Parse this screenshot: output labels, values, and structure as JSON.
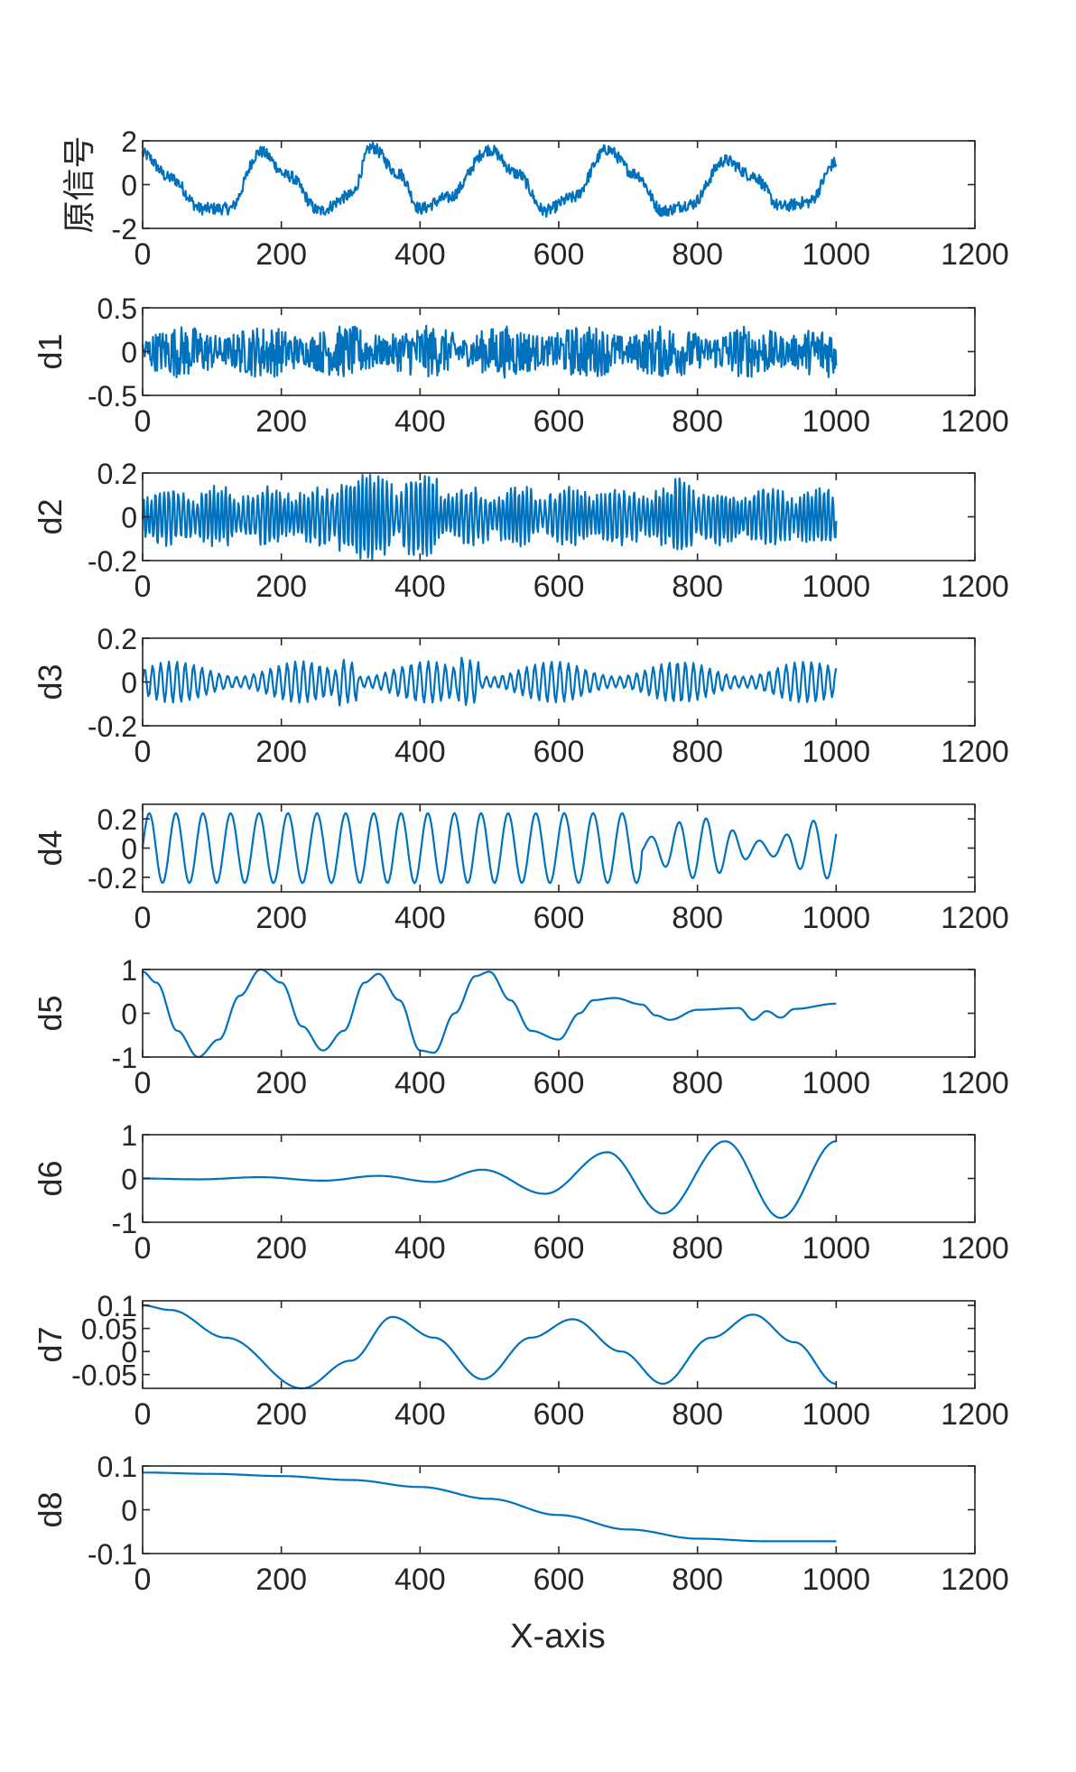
{
  "figure": {
    "xlabel": "X-axis",
    "color": "#0072BD"
  },
  "chart_data": [
    {
      "type": "line",
      "ylabel": "原信号",
      "xlim": [
        0,
        1200
      ],
      "ylim": [
        -2,
        2
      ],
      "xticks": [
        "0",
        "200",
        "400",
        "600",
        "800",
        "1000",
        "1200"
      ],
      "yticks": [
        "-2",
        "0",
        "2"
      ],
      "grid": false,
      "series": [
        {
          "description": "sinusoid with additive noise, about 6 periods over 0-1000",
          "x": [
            0,
            40,
            85,
            125,
            170,
            210,
            255,
            300,
            330,
            370,
            400,
            440,
            500,
            540,
            580,
            620,
            670,
            710,
            750,
            790,
            840,
            880,
            920,
            960,
            1000
          ],
          "values": [
            1.4,
            0.3,
            -1.1,
            -1.1,
            1.5,
            0.4,
            -1.2,
            -0.5,
            1.7,
            0.5,
            -1.1,
            -0.6,
            1.6,
            0.5,
            -1.2,
            -0.6,
            1.6,
            0.5,
            -1.2,
            -0.9,
            1.1,
            0.4,
            -1.0,
            -0.8,
            1.0
          ]
        }
      ]
    },
    {
      "type": "line",
      "ylabel": "d1",
      "xlim": [
        0,
        1200
      ],
      "ylim": [
        -0.5,
        0.5
      ],
      "xticks": [
        "0",
        "200",
        "400",
        "600",
        "800",
        "1000",
        "1200"
      ],
      "yticks": [
        "-0.5",
        "0",
        "0.5"
      ],
      "grid": false,
      "series": [
        {
          "description": "high-frequency noise detail, amplitude about 0.3",
          "x_range": [
            0,
            1000
          ],
          "amplitude": 0.3
        }
      ]
    },
    {
      "type": "line",
      "ylabel": "d2",
      "xlim": [
        0,
        1200
      ],
      "ylim": [
        -0.2,
        0.2
      ],
      "xticks": [
        "0",
        "200",
        "400",
        "600",
        "800",
        "1000",
        "1200"
      ],
      "yticks": [
        "-0.2",
        "0",
        "0.2"
      ],
      "grid": false,
      "series": [
        {
          "description": "high-frequency oscillation, amplitude about 0.1-0.2 with bursts",
          "x_range": [
            0,
            1000
          ],
          "amplitude": 0.15
        }
      ]
    },
    {
      "type": "line",
      "ylabel": "d3",
      "xlim": [
        0,
        1200
      ],
      "ylim": [
        -0.2,
        0.2
      ],
      "xticks": [
        "0",
        "200",
        "400",
        "600",
        "800",
        "1000",
        "1200"
      ],
      "yticks": [
        "-0.2",
        "0",
        "0.2"
      ],
      "grid": false,
      "series": [
        {
          "description": "oscillation with period about 12, amplitude about 0.05-0.15",
          "x_range": [
            0,
            1000
          ],
          "period": 12,
          "amplitude": 0.08
        }
      ]
    },
    {
      "type": "line",
      "ylabel": "d4",
      "xlim": [
        0,
        1200
      ],
      "ylim": [
        -0.3,
        0.3
      ],
      "xticks": [
        "0",
        "200",
        "400",
        "600",
        "800",
        "1000",
        "1200"
      ],
      "yticks": [
        "-0.2",
        "0",
        "0.2"
      ],
      "grid": false,
      "series": [
        {
          "description": "oscillation with period about 40, amplitude about 0.25",
          "x_range": [
            0,
            1000
          ],
          "period": 40,
          "amplitude": 0.22
        }
      ]
    },
    {
      "type": "line",
      "ylabel": "d5",
      "xlim": [
        0,
        1200
      ],
      "ylim": [
        -1,
        1
      ],
      "xticks": [
        "0",
        "200",
        "400",
        "600",
        "800",
        "1000",
        "1200"
      ],
      "yticks": [
        "-1",
        "0",
        "1"
      ],
      "grid": false,
      "series": [
        {
          "x": [
            0,
            20,
            50,
            80,
            110,
            140,
            170,
            200,
            230,
            260,
            290,
            320,
            340,
            370,
            400,
            420,
            450,
            480,
            500,
            530,
            560,
            600,
            630,
            650,
            680,
            720,
            740,
            760,
            800,
            860,
            880,
            900,
            920,
            940,
            1000
          ],
          "values": [
            0.95,
            0.7,
            -0.4,
            -1.0,
            -0.6,
            0.4,
            1.0,
            0.7,
            -0.3,
            -0.85,
            -0.4,
            0.7,
            0.9,
            0.3,
            -0.85,
            -0.9,
            0.0,
            0.85,
            0.95,
            0.3,
            -0.4,
            -0.6,
            0.0,
            0.3,
            0.35,
            0.2,
            -0.05,
            -0.15,
            0.08,
            0.12,
            -0.15,
            0.05,
            -0.1,
            0.1,
            0.22
          ]
        }
      ]
    },
    {
      "type": "line",
      "ylabel": "d6",
      "xlim": [
        0,
        1200
      ],
      "ylim": [
        -1,
        1
      ],
      "xticks": [
        "0",
        "200",
        "400",
        "600",
        "800",
        "1000",
        "1200"
      ],
      "yticks": [
        "-1",
        "0",
        "1"
      ],
      "grid": false,
      "series": [
        {
          "x": [
            0,
            80,
            170,
            260,
            340,
            420,
            490,
            580,
            670,
            750,
            840,
            920,
            1000
          ],
          "values": [
            0.0,
            -0.02,
            0.03,
            -0.05,
            0.06,
            -0.08,
            0.2,
            -0.35,
            0.6,
            -0.8,
            0.85,
            -0.9,
            0.85
          ]
        }
      ]
    },
    {
      "type": "line",
      "ylabel": "d7",
      "xlim": [
        0,
        1200
      ],
      "ylim": [
        -0.08,
        0.11
      ],
      "xticks": [
        "0",
        "200",
        "400",
        "600",
        "800",
        "1000",
        "1200"
      ],
      "yticks": [
        "-0.05",
        "0",
        "0.05",
        "0.1"
      ],
      "grid": false,
      "series": [
        {
          "x": [
            0,
            40,
            120,
            230,
            300,
            360,
            420,
            490,
            560,
            620,
            690,
            750,
            820,
            880,
            940,
            1000
          ],
          "values": [
            0.1,
            0.09,
            0.03,
            -0.08,
            -0.02,
            0.075,
            0.03,
            -0.06,
            0.03,
            0.07,
            0.0,
            -0.07,
            0.03,
            0.08,
            0.02,
            -0.07
          ]
        }
      ]
    },
    {
      "type": "line",
      "ylabel": "d8",
      "xlim": [
        0,
        1200
      ],
      "ylim": [
        -0.1,
        0.1
      ],
      "xticks": [
        "0",
        "200",
        "400",
        "600",
        "800",
        "1000",
        "1200"
      ],
      "yticks": [
        "-0.1",
        "0",
        "0.1"
      ],
      "grid": false,
      "series": [
        {
          "x": [
            0,
            100,
            200,
            300,
            400,
            500,
            600,
            700,
            800,
            900,
            1000
          ],
          "values": [
            0.085,
            0.082,
            0.077,
            0.068,
            0.052,
            0.025,
            -0.012,
            -0.045,
            -0.066,
            -0.072,
            -0.072
          ]
        }
      ]
    }
  ]
}
